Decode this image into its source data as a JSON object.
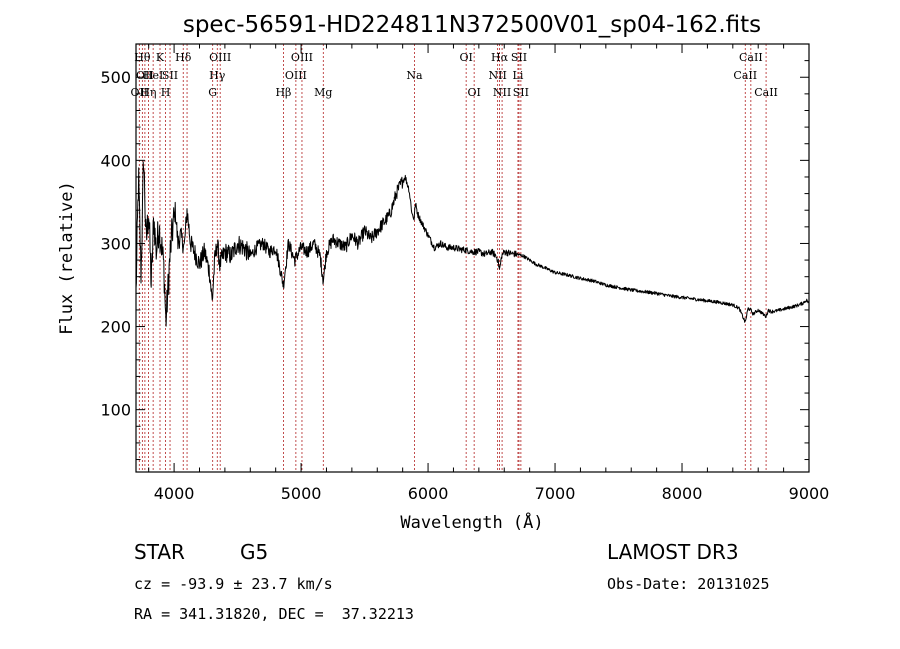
{
  "chart_data": {
    "type": "line",
    "title": "spec-56591-HD224811N372500V01_sp04-162.fits",
    "xlabel": "Wavelength (Å)",
    "ylabel": "Flux (relative)",
    "xlim": [
      3700,
      9000
    ],
    "ylim": [
      25,
      540
    ],
    "xticks": [
      4000,
      5000,
      6000,
      7000,
      8000,
      9000
    ],
    "yticks": [
      100,
      200,
      300,
      400,
      500
    ],
    "grid": false,
    "line_color": "#000000",
    "marker_color": "#b22222",
    "series": [
      {
        "name": "flux",
        "x": [
          3700,
          3720,
          3740,
          3760,
          3780,
          3800,
          3820,
          3840,
          3860,
          3880,
          3900,
          3920,
          3935,
          3950,
          3970,
          3990,
          4010,
          4030,
          4050,
          4080,
          4102,
          4130,
          4160,
          4200,
          4240,
          4280,
          4300,
          4320,
          4340,
          4360,
          4400,
          4450,
          4500,
          4550,
          4600,
          4650,
          4700,
          4750,
          4800,
          4861,
          4900,
          4950,
          5000,
          5050,
          5100,
          5150,
          5175,
          5200,
          5250,
          5300,
          5350,
          5400,
          5450,
          5500,
          5550,
          5600,
          5650,
          5700,
          5750,
          5780,
          5820,
          5850,
          5875,
          5890,
          5900,
          5920,
          5950,
          6000,
          6050,
          6100,
          6150,
          6200,
          6250,
          6300,
          6350,
          6400,
          6450,
          6500,
          6530,
          6550,
          6563,
          6580,
          6600,
          6650,
          6700,
          6750,
          6800,
          6850,
          6900,
          7000,
          7100,
          7200,
          7300,
          7400,
          7500,
          7600,
          7700,
          7800,
          7900,
          8000,
          8100,
          8200,
          8300,
          8400,
          8450,
          8498,
          8520,
          8542,
          8560,
          8600,
          8662,
          8680,
          8700,
          8750,
          8800,
          8850,
          8900,
          8950,
          8980,
          9000
        ],
        "values": [
          240,
          380,
          260,
          405,
          300,
          340,
          250,
          330,
          290,
          320,
          300,
          270,
          205,
          240,
          290,
          320,
          340,
          300,
          310,
          295,
          340,
          300,
          290,
          275,
          290,
          265,
          230,
          280,
          300,
          275,
          290,
          285,
          300,
          295,
          285,
          295,
          300,
          290,
          295,
          250,
          300,
          280,
          295,
          290,
          300,
          285,
          255,
          290,
          305,
          300,
          295,
          310,
          300,
          315,
          305,
          315,
          325,
          335,
          360,
          370,
          380,
          365,
          335,
          330,
          348,
          335,
          325,
          310,
          295,
          300,
          295,
          295,
          293,
          292,
          290,
          290,
          287,
          290,
          286,
          280,
          268,
          285,
          290,
          288,
          287,
          285,
          280,
          275,
          272,
          265,
          262,
          258,
          255,
          250,
          247,
          244,
          242,
          240,
          237,
          235,
          233,
          231,
          229,
          226,
          222,
          205,
          222,
          220,
          215,
          220,
          212,
          220,
          218,
          219,
          221,
          223,
          225,
          228,
          232,
          228
        ]
      }
    ],
    "lines": [
      {
        "x": 3726,
        "label": "OII",
        "row": 3
      },
      {
        "x": 3750,
        "label": "Hθ",
        "row": 1
      },
      {
        "x": 3770,
        "label": "OII",
        "row": 2
      },
      {
        "x": 3798,
        "label": "Hη",
        "row": 3
      },
      {
        "x": 3835,
        "label": "HeI",
        "row": 2
      },
      {
        "x": 3889,
        "label": "K",
        "row": 1
      },
      {
        "x": 3933,
        "label": "H",
        "row": 3
      },
      {
        "x": 3968,
        "label": "SII",
        "row": 2
      },
      {
        "x": 4072,
        "label": "Hδ",
        "row": 1
      },
      {
        "x": 4102,
        "label": "",
        "row": 0
      },
      {
        "x": 4304,
        "label": "G",
        "row": 3
      },
      {
        "x": 4340,
        "label": "Hγ",
        "row": 2
      },
      {
        "x": 4363,
        "label": "OIII",
        "row": 1
      },
      {
        "x": 4861,
        "label": "Hβ",
        "row": 3
      },
      {
        "x": 4959,
        "label": "OIII",
        "row": 2
      },
      {
        "x": 5007,
        "label": "OIII",
        "row": 1
      },
      {
        "x": 5175,
        "label": "Mg",
        "row": 3
      },
      {
        "x": 5893,
        "label": "Na",
        "row": 2
      },
      {
        "x": 6300,
        "label": "OI",
        "row": 1
      },
      {
        "x": 6363,
        "label": "OI",
        "row": 3
      },
      {
        "x": 6548,
        "label": "NII",
        "row": 2
      },
      {
        "x": 6563,
        "label": "Hα",
        "row": 1
      },
      {
        "x": 6583,
        "label": "NII",
        "row": 3
      },
      {
        "x": 6708,
        "label": "Li",
        "row": 2
      },
      {
        "x": 6716,
        "label": "SII",
        "row": 1
      },
      {
        "x": 6731,
        "label": "SII",
        "row": 3
      },
      {
        "x": 8498,
        "label": "CaII",
        "row": 2
      },
      {
        "x": 8542,
        "label": "CaII",
        "row": 1
      },
      {
        "x": 8662,
        "label": "CaII",
        "row": 3
      }
    ]
  },
  "info": {
    "object_class": "STAR",
    "subclass": "G5",
    "survey": "LAMOST DR3",
    "redshift": "cz = -93.9 ± 23.7 km/s",
    "obs_date": "Obs-Date: 20131025",
    "coords": "RA = 341.31820, DEC =  37.32213"
  }
}
